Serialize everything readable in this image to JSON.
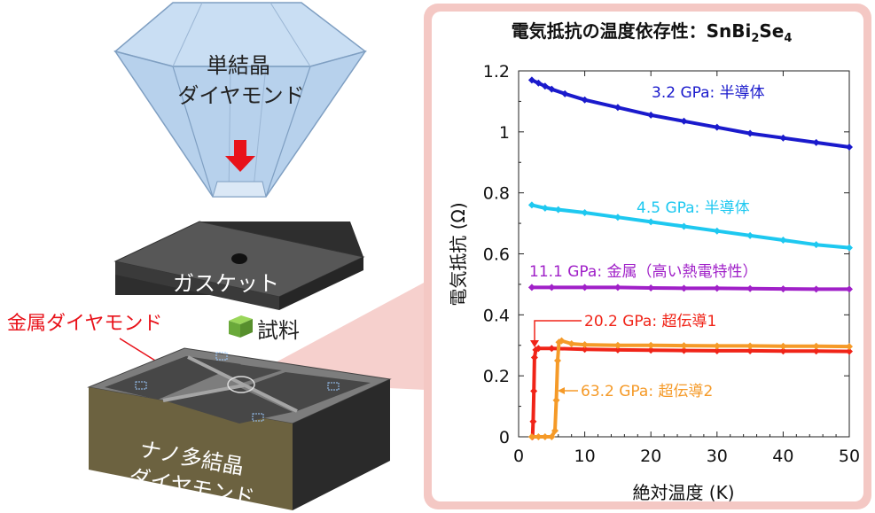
{
  "diagram": {
    "diamond_label_line1": "単結晶",
    "diamond_label_line2": "ダイヤモンド",
    "gasket_label": "ガスケット",
    "sample_label": "試料",
    "metal_diamond_label": "金属ダイヤモンド",
    "nano_label_line1": "ナノ多結晶",
    "nano_label_line2": "ダイヤモンド",
    "colors": {
      "diamond": "#bcd6ef",
      "diamond_edge": "#7f9fc2",
      "arrow": "#e8121a",
      "gasket_top": "#525252",
      "sample": "#7fc241",
      "anvil_side": "#6b6038",
      "anvil_top": "#7a7a7a"
    }
  },
  "chart_data": {
    "type": "scatter",
    "title_main": "電気抵抗の温度依存性：",
    "title_compound": "SnBi",
    "title_sub1": "2",
    "title_mid": "Se",
    "title_sub2": "4",
    "xlabel": "絶対温度 (K)",
    "ylabel": "電気抵抗 (Ω)",
    "xlim": [
      0,
      50
    ],
    "ylim": [
      0,
      1.2
    ],
    "x_ticks": [
      "0",
      "10",
      "20",
      "30",
      "40",
      "50"
    ],
    "y_ticks": [
      "0",
      "0.2",
      "0.4",
      "0.6",
      "0.8",
      "1",
      "1.2"
    ],
    "grid": false,
    "series": [
      {
        "name": "3.2 GPa: 半導体",
        "color": "#1a1acc",
        "points": [
          [
            2,
            1.17
          ],
          [
            3,
            1.16
          ],
          [
            4,
            1.15
          ],
          [
            5,
            1.14
          ],
          [
            7,
            1.125
          ],
          [
            10,
            1.105
          ],
          [
            15,
            1.08
          ],
          [
            20,
            1.055
          ],
          [
            25,
            1.035
          ],
          [
            30,
            1.015
          ],
          [
            35,
            0.995
          ],
          [
            40,
            0.98
          ],
          [
            45,
            0.965
          ],
          [
            50,
            0.95
          ]
        ]
      },
      {
        "name": "4.5 GPa: 半導体",
        "color": "#1ec8f0",
        "points": [
          [
            2,
            0.76
          ],
          [
            4,
            0.75
          ],
          [
            6,
            0.745
          ],
          [
            10,
            0.735
          ],
          [
            15,
            0.72
          ],
          [
            20,
            0.705
          ],
          [
            25,
            0.69
          ],
          [
            30,
            0.675
          ],
          [
            35,
            0.66
          ],
          [
            40,
            0.645
          ],
          [
            45,
            0.63
          ],
          [
            50,
            0.62
          ]
        ]
      },
      {
        "name": "11.1 GPa: 金属（高い熱電特性）",
        "color": "#a020c8",
        "points": [
          [
            2,
            0.49
          ],
          [
            5,
            0.49
          ],
          [
            10,
            0.49
          ],
          [
            15,
            0.49
          ],
          [
            20,
            0.488
          ],
          [
            25,
            0.487
          ],
          [
            30,
            0.487
          ],
          [
            35,
            0.486
          ],
          [
            40,
            0.485
          ],
          [
            45,
            0.484
          ],
          [
            50,
            0.484
          ]
        ]
      },
      {
        "name": "20.2 GPa: 超伝導1",
        "color": "#f02418",
        "points": [
          [
            2.1,
            0.0
          ],
          [
            2.2,
            0.05
          ],
          [
            2.3,
            0.15
          ],
          [
            2.4,
            0.26
          ],
          [
            2.6,
            0.285
          ],
          [
            3,
            0.29
          ],
          [
            5,
            0.29
          ],
          [
            10,
            0.287
          ],
          [
            15,
            0.285
          ],
          [
            20,
            0.284
          ],
          [
            25,
            0.283
          ],
          [
            30,
            0.282
          ],
          [
            35,
            0.282
          ],
          [
            40,
            0.281
          ],
          [
            45,
            0.281
          ],
          [
            50,
            0.28
          ]
        ]
      },
      {
        "name": "63.2 GPa: 超伝導2",
        "color": "#f59a28",
        "points": [
          [
            2,
            0.0
          ],
          [
            3,
            0.0
          ],
          [
            4,
            0.0
          ],
          [
            5,
            0.0
          ],
          [
            5.5,
            0.02
          ],
          [
            5.7,
            0.12
          ],
          [
            5.9,
            0.25
          ],
          [
            6.1,
            0.31
          ],
          [
            6.5,
            0.315
          ],
          [
            8,
            0.305
          ],
          [
            10,
            0.302
          ],
          [
            15,
            0.3
          ],
          [
            20,
            0.3
          ],
          [
            25,
            0.299
          ],
          [
            30,
            0.298
          ],
          [
            35,
            0.298
          ],
          [
            40,
            0.297
          ],
          [
            45,
            0.297
          ],
          [
            50,
            0.296
          ]
        ]
      }
    ],
    "annotations": [
      "3.2 GPa: 半導体",
      "4.5 GPa: 半導体",
      "11.1 GPa: 金属（高い熱電特性）",
      "20.2 GPa: 超伝導1",
      "63.2 GPa: 超伝導2"
    ]
  }
}
